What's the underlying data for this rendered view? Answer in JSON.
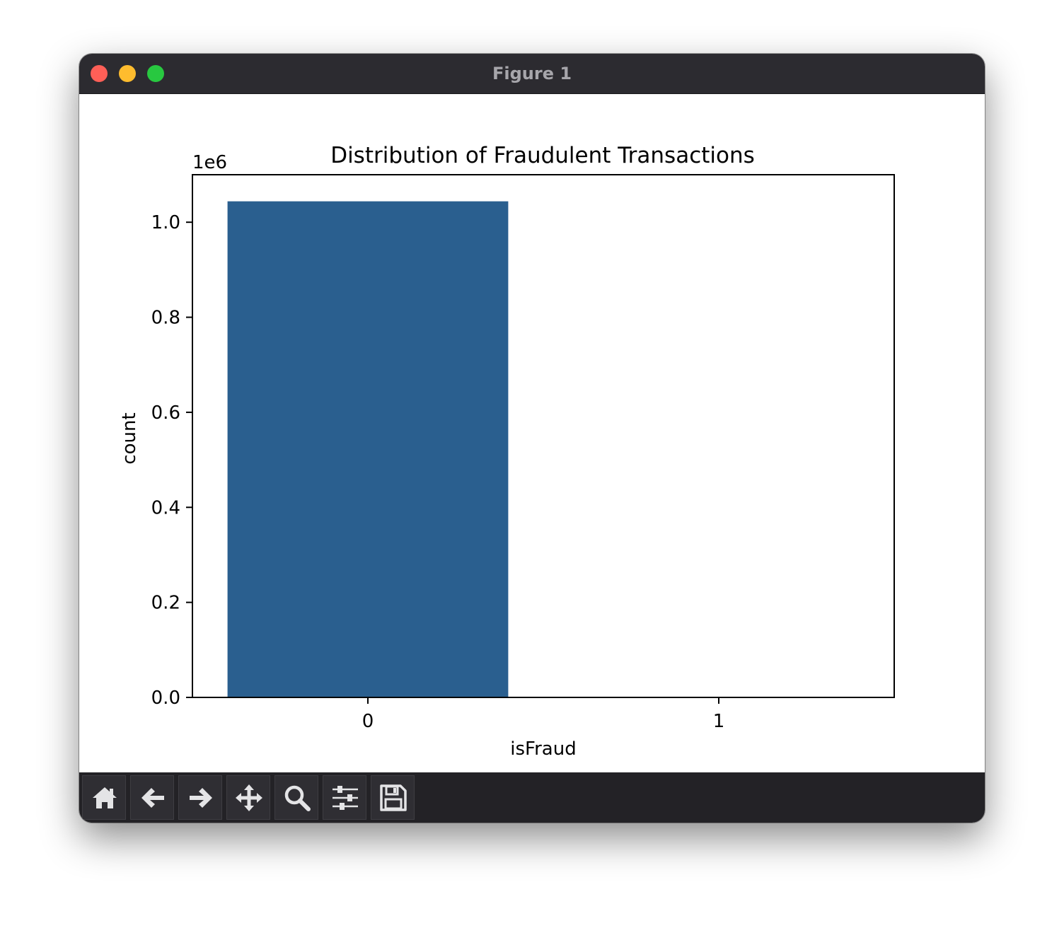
{
  "window": {
    "title": "Figure 1"
  },
  "toolbar": {
    "buttons": [
      {
        "name": "home-button",
        "icon": "home-icon"
      },
      {
        "name": "back-button",
        "icon": "arrow-left-icon"
      },
      {
        "name": "forward-button",
        "icon": "arrow-right-icon"
      },
      {
        "name": "pan-button",
        "icon": "move-icon"
      },
      {
        "name": "zoom-button",
        "icon": "search-icon"
      },
      {
        "name": "configure-subplots-button",
        "icon": "sliders-icon"
      },
      {
        "name": "save-button",
        "icon": "save-icon"
      }
    ]
  },
  "colors": {
    "bar": "#2a5f8f",
    "titlebar": "#2c2b30",
    "toolbar": "#232226"
  },
  "chart_data": {
    "type": "bar",
    "title": "Distribution of Fraudulent Transactions",
    "xlabel": "isFraud",
    "ylabel": "count",
    "offset_label": "1e6",
    "categories": [
      "0",
      "1"
    ],
    "values": [
      1044000,
      1200
    ],
    "ylim": [
      0,
      1100000
    ],
    "yticks": [
      0,
      200000,
      400000,
      600000,
      800000,
      1000000
    ],
    "ytick_labels": [
      "0.0",
      "0.2",
      "0.4",
      "0.6",
      "0.8",
      "1.0"
    ],
    "grid": false,
    "legend": "none"
  }
}
